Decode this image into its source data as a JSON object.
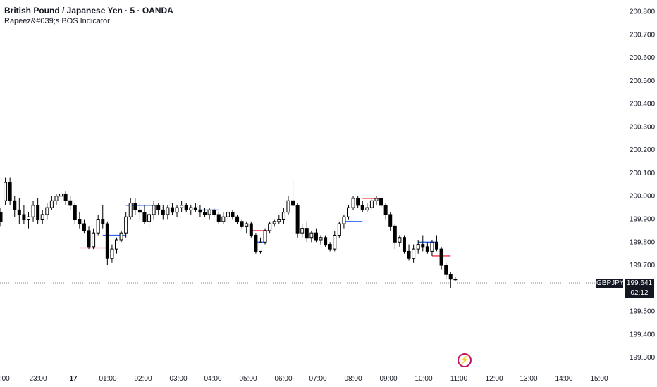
{
  "header": {
    "title": "British Pound / Japanese Yen · 5 · OANDA",
    "indicator": "Rapeez&#039;s BOS Indicator"
  },
  "price_tag": {
    "symbol": "GBPJPY",
    "price": "199.641",
    "countdown": "02:12"
  },
  "chart_data": {
    "type": "candlestick",
    "yticks": [
      "200.800",
      "200.700",
      "200.600",
      "200.500",
      "200.400",
      "200.300",
      "200.200",
      "200.100",
      "200.000",
      "199.900",
      "199.800",
      "199.700",
      "199.500",
      "199.400",
      "199.300"
    ],
    "ylim": [
      199.27,
      200.82
    ],
    "xticks": [
      "2:00",
      "23:00",
      "17",
      "01:00",
      "02:00",
      "03:00",
      "04:00",
      "05:00",
      "06:00",
      "07:00",
      "08:00",
      "09:00",
      "10:00",
      "11:00",
      "12:00",
      "13:00",
      "14:00",
      "15:00"
    ],
    "last_price": 199.641,
    "colors": {
      "up": "#ffffff",
      "down": "#000000",
      "bos_bull": "#2962ff",
      "bos_bear": "#f23645"
    },
    "candles": [
      [
        199.93,
        199.95,
        199.87,
        199.89
      ],
      [
        199.98,
        200.08,
        199.96,
        200.06
      ],
      [
        200.06,
        200.08,
        199.96,
        199.98
      ],
      [
        199.98,
        200.0,
        199.91,
        199.94
      ],
      [
        199.94,
        199.99,
        199.88,
        199.92
      ],
      [
        199.92,
        199.96,
        199.88,
        199.9
      ],
      [
        199.9,
        199.93,
        199.86,
        199.91
      ],
      [
        199.91,
        199.98,
        199.89,
        199.96
      ],
      [
        199.96,
        199.99,
        199.88,
        199.9
      ],
      [
        199.9,
        199.94,
        199.88,
        199.92
      ],
      [
        199.92,
        199.97,
        199.9,
        199.95
      ],
      [
        199.95,
        200.0,
        199.94,
        199.98
      ],
      [
        199.98,
        200.01,
        199.96,
        200.0
      ],
      [
        200.0,
        200.02,
        199.97,
        200.01
      ],
      [
        200.01,
        200.02,
        199.96,
        199.98
      ],
      [
        199.98,
        200.0,
        199.94,
        199.96
      ],
      [
        199.96,
        199.97,
        199.88,
        199.9
      ],
      [
        199.9,
        199.93,
        199.86,
        199.88
      ],
      [
        199.88,
        199.9,
        199.84,
        199.85
      ],
      [
        199.85,
        199.87,
        199.77,
        199.78
      ],
      [
        199.78,
        199.86,
        199.77,
        199.84
      ],
      [
        199.84,
        199.92,
        199.83,
        199.9
      ],
      [
        199.9,
        199.96,
        199.86,
        199.88
      ],
      [
        199.88,
        199.89,
        199.7,
        199.73
      ],
      [
        199.73,
        199.79,
        199.71,
        199.77
      ],
      [
        199.77,
        199.82,
        199.75,
        199.81
      ],
      [
        199.81,
        199.85,
        199.8,
        199.84
      ],
      [
        199.84,
        199.93,
        199.82,
        199.91
      ],
      [
        199.91,
        199.99,
        199.9,
        199.97
      ],
      [
        199.97,
        199.99,
        199.92,
        199.94
      ],
      [
        199.94,
        199.97,
        199.9,
        199.93
      ],
      [
        199.93,
        199.96,
        199.88,
        199.89
      ],
      [
        199.89,
        199.94,
        199.86,
        199.92
      ],
      [
        199.92,
        199.98,
        199.9,
        199.96
      ],
      [
        199.96,
        199.97,
        199.92,
        199.94
      ],
      [
        199.94,
        199.96,
        199.9,
        199.92
      ],
      [
        199.92,
        199.96,
        199.9,
        199.95
      ],
      [
        199.95,
        199.97,
        199.92,
        199.93
      ],
      [
        199.93,
        199.96,
        199.91,
        199.95
      ],
      [
        199.95,
        199.98,
        199.93,
        199.96
      ],
      [
        199.96,
        199.97,
        199.93,
        199.94
      ],
      [
        199.94,
        199.96,
        199.92,
        199.95
      ],
      [
        199.95,
        199.97,
        199.93,
        199.94
      ],
      [
        199.94,
        199.96,
        199.91,
        199.93
      ],
      [
        199.93,
        199.95,
        199.91,
        199.92
      ],
      [
        199.92,
        199.95,
        199.9,
        199.94
      ],
      [
        199.94,
        199.95,
        199.91,
        199.92
      ],
      [
        199.92,
        199.93,
        199.88,
        199.89
      ],
      [
        199.89,
        199.93,
        199.88,
        199.91
      ],
      [
        199.91,
        199.94,
        199.89,
        199.93
      ],
      [
        199.93,
        199.94,
        199.9,
        199.91
      ],
      [
        199.91,
        199.92,
        199.88,
        199.89
      ],
      [
        199.89,
        199.9,
        199.86,
        199.87
      ],
      [
        199.87,
        199.89,
        199.84,
        199.88
      ],
      [
        199.88,
        199.89,
        199.82,
        199.83
      ],
      [
        199.83,
        199.84,
        199.75,
        199.76
      ],
      [
        199.76,
        199.82,
        199.75,
        199.8
      ],
      [
        199.8,
        199.86,
        199.79,
        199.85
      ],
      [
        199.85,
        199.89,
        199.84,
        199.88
      ],
      [
        199.88,
        199.9,
        199.87,
        199.89
      ],
      [
        199.89,
        199.92,
        199.88,
        199.9
      ],
      [
        199.9,
        199.95,
        199.88,
        199.93
      ],
      [
        199.93,
        200.0,
        199.92,
        199.98
      ],
      [
        199.98,
        200.07,
        199.95,
        199.96
      ],
      [
        199.96,
        199.97,
        199.82,
        199.84
      ],
      [
        199.84,
        199.88,
        199.82,
        199.86
      ],
      [
        199.86,
        199.89,
        199.8,
        199.82
      ],
      [
        199.82,
        199.85,
        199.8,
        199.84
      ],
      [
        199.84,
        199.86,
        199.8,
        199.81
      ],
      [
        199.81,
        199.83,
        199.79,
        199.82
      ],
      [
        199.82,
        199.83,
        199.78,
        199.79
      ],
      [
        199.79,
        199.8,
        199.76,
        199.77
      ],
      [
        199.77,
        199.85,
        199.76,
        199.83
      ],
      [
        199.83,
        199.89,
        199.82,
        199.88
      ],
      [
        199.88,
        199.92,
        199.86,
        199.91
      ],
      [
        199.91,
        199.96,
        199.9,
        199.95
      ],
      [
        199.95,
        200.0,
        199.94,
        199.99
      ],
      [
        199.99,
        200.0,
        199.95,
        199.96
      ],
      [
        199.96,
        199.98,
        199.93,
        199.94
      ],
      [
        199.94,
        199.97,
        199.93,
        199.95
      ],
      [
        199.95,
        199.99,
        199.94,
        199.98
      ],
      [
        199.98,
        200.0,
        199.96,
        199.99
      ],
      [
        199.99,
        200.0,
        199.95,
        199.96
      ],
      [
        199.96,
        199.97,
        199.9,
        199.92
      ],
      [
        199.92,
        199.93,
        199.85,
        199.87
      ],
      [
        199.87,
        199.88,
        199.77,
        199.8
      ],
      [
        199.8,
        199.83,
        199.78,
        199.82
      ],
      [
        199.82,
        199.83,
        199.75,
        199.76
      ],
      [
        199.76,
        199.79,
        199.72,
        199.73
      ],
      [
        199.73,
        199.79,
        199.71,
        199.77
      ],
      [
        199.77,
        199.81,
        199.75,
        199.79
      ],
      [
        199.79,
        199.83,
        199.76,
        199.78
      ],
      [
        199.78,
        199.8,
        199.75,
        199.76
      ],
      [
        199.76,
        199.81,
        199.74,
        199.8
      ],
      [
        199.8,
        199.83,
        199.76,
        199.77
      ],
      [
        199.77,
        199.78,
        199.68,
        199.7
      ],
      [
        199.7,
        199.71,
        199.64,
        199.66
      ],
      [
        199.66,
        199.67,
        199.6,
        199.64
      ],
      [
        199.64,
        199.65,
        199.63,
        199.64
      ]
    ],
    "bos_lines": [
      {
        "type": "bull",
        "from": 22,
        "to": 27,
        "price": 199.83
      },
      {
        "type": "bear",
        "from": 17,
        "to": 23,
        "price": 199.775
      },
      {
        "type": "bull",
        "from": 27,
        "to": 33,
        "price": 199.96
      },
      {
        "type": "bull",
        "from": 43,
        "to": 47,
        "price": 199.94
      },
      {
        "type": "bull",
        "from": 55,
        "to": 57,
        "price": 199.8
      },
      {
        "type": "bear",
        "from": 54,
        "to": 58,
        "price": 199.85
      },
      {
        "type": "bull",
        "from": 74,
        "to": 78,
        "price": 199.89
      },
      {
        "type": "bear",
        "from": 78,
        "to": 82,
        "price": 199.99
      },
      {
        "type": "bull",
        "from": 90,
        "to": 94,
        "price": 199.8
      },
      {
        "type": "bear",
        "from": 93,
        "to": 97,
        "price": 199.74
      }
    ]
  }
}
